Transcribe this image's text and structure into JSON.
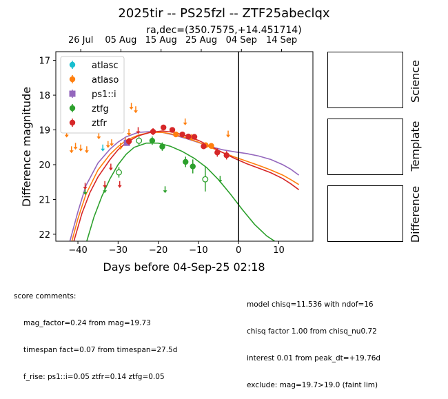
{
  "chart_data": {
    "type": "scatter",
    "title": "2025tir -- PS25fzl -- ZTF25abeclqx",
    "subtitle": "ra,dec=(350.7575,+14.451714)",
    "xlabel": "Days before 04-Sep-25 02:18",
    "ylabel": "Difference magnitude",
    "xlim": [
      -45.5,
      18.5
    ],
    "ylim": [
      22.2,
      16.75
    ],
    "x_ticks": [
      -40,
      -30,
      -20,
      -10,
      0,
      10
    ],
    "y_ticks": [
      17,
      18,
      19,
      20,
      21,
      22
    ],
    "top_axis_ticks": [
      {
        "x": -39.3,
        "label": "26 Jul"
      },
      {
        "x": -29.3,
        "label": "05 Aug"
      },
      {
        "x": -19.3,
        "label": "15 Aug"
      },
      {
        "x": -9.3,
        "label": "25 Aug"
      },
      {
        "x": 0.7,
        "label": "04 Sep"
      },
      {
        "x": 10.7,
        "label": "14 Sep"
      }
    ],
    "vertical_line_x": 0,
    "legend_position": "upper-left",
    "grid": false,
    "series": [
      {
        "name": "atlasc",
        "color": "#17becf",
        "marker": "circle",
        "points": [],
        "upper_limits": [
          [
            -33.8,
            19.5
          ]
        ]
      },
      {
        "name": "atlaso",
        "color": "#ff7f0e",
        "marker": "circle",
        "points": [
          [
            -15.6,
            19.13
          ],
          [
            -8.2,
            19.44
          ],
          [
            -6.8,
            19.46
          ]
        ],
        "upper_limits": [
          [
            -42.8,
            19.1
          ],
          [
            -41.6,
            19.55
          ],
          [
            -40.6,
            19.45
          ],
          [
            -39.3,
            19.5
          ],
          [
            -37.8,
            19.55
          ],
          [
            -34.8,
            19.15
          ],
          [
            -32.5,
            19.4
          ],
          [
            -31.6,
            19.35
          ],
          [
            -29.4,
            19.45
          ],
          [
            -28.2,
            19.3
          ],
          [
            -27.3,
            19.05
          ],
          [
            -26.7,
            18.3
          ],
          [
            -25.6,
            18.4
          ],
          [
            -13.3,
            18.75
          ],
          [
            -11.7,
            19.2
          ],
          [
            -2.6,
            19.1
          ]
        ]
      },
      {
        "name": "ps1::i",
        "color": "#9467bd",
        "marker": "square",
        "points": [
          [
            -27.8,
            19.37
          ]
        ],
        "upper_limits": []
      },
      {
        "name": "ztfg",
        "color": "#2ca02c",
        "marker": "circle",
        "points": [
          [
            -24.8,
            19.31,
            0.12,
            true
          ],
          [
            -21.5,
            19.31,
            0.12,
            false
          ],
          [
            -19.0,
            19.48,
            0.12,
            false
          ],
          [
            -13.2,
            19.92,
            0.15,
            false
          ],
          [
            -11.4,
            20.05,
            0.2,
            false
          ],
          [
            -8.3,
            20.42,
            0.35,
            true
          ],
          [
            -29.8,
            20.22,
            0.15,
            true
          ]
        ],
        "upper_limits": [
          [
            -38.2,
            20.75
          ],
          [
            -33.3,
            20.7
          ],
          [
            -18.3,
            20.7
          ],
          [
            -4.6,
            20.4
          ]
        ]
      },
      {
        "name": "ztfr",
        "color": "#d62728",
        "marker": "circle",
        "points": [
          [
            -27.3,
            19.33,
            0.1
          ],
          [
            -21.3,
            19.05,
            0.1
          ],
          [
            -18.7,
            18.93,
            0.08
          ],
          [
            -16.5,
            19.0,
            0.08
          ],
          [
            -14.0,
            19.13,
            0.08
          ],
          [
            -12.5,
            19.19,
            0.08
          ],
          [
            -11.0,
            19.2,
            0.08
          ],
          [
            -8.7,
            19.47,
            0.08
          ],
          [
            -5.3,
            19.65,
            0.12
          ],
          [
            -3.0,
            19.73,
            0.12
          ]
        ],
        "upper_limits": [
          [
            -38.2,
            20.6
          ],
          [
            -33.3,
            20.55
          ],
          [
            -31.8,
            20.05
          ],
          [
            -29.6,
            20.55
          ],
          [
            -25.0,
            19.0
          ]
        ]
      }
    ],
    "model_curves": [
      {
        "name": "ps1::i",
        "color": "#9467bd",
        "points": [
          [
            -42.0,
            22.2
          ],
          [
            -40.0,
            21.35
          ],
          [
            -38.0,
            20.6
          ],
          [
            -35.0,
            19.95
          ],
          [
            -32.0,
            19.55
          ],
          [
            -30.0,
            19.35
          ],
          [
            -28.0,
            19.2
          ],
          [
            -25.0,
            19.07
          ],
          [
            -22.0,
            19.05
          ],
          [
            -19.0,
            19.07
          ],
          [
            -16.0,
            19.15
          ],
          [
            -13.0,
            19.25
          ],
          [
            -10.0,
            19.36
          ],
          [
            -7.0,
            19.48
          ],
          [
            -4.0,
            19.57
          ],
          [
            -1.0,
            19.63
          ],
          [
            2.0,
            19.68
          ],
          [
            5.0,
            19.75
          ],
          [
            8.0,
            19.85
          ],
          [
            11.0,
            20.0
          ],
          [
            13.0,
            20.13
          ],
          [
            15.0,
            20.3
          ]
        ]
      },
      {
        "name": "atlaso",
        "color": "#ff7f0e",
        "points": [
          [
            -41.5,
            22.2
          ],
          [
            -40.0,
            21.55
          ],
          [
            -38.0,
            20.85
          ],
          [
            -35.0,
            20.15
          ],
          [
            -32.0,
            19.7
          ],
          [
            -30.0,
            19.48
          ],
          [
            -28.0,
            19.3
          ],
          [
            -25.0,
            19.15
          ],
          [
            -22.0,
            19.07
          ],
          [
            -19.0,
            19.07
          ],
          [
            -16.0,
            19.13
          ],
          [
            -13.0,
            19.23
          ],
          [
            -10.0,
            19.35
          ],
          [
            -7.0,
            19.5
          ],
          [
            -4.0,
            19.65
          ],
          [
            -1.0,
            19.78
          ],
          [
            2.0,
            19.9
          ],
          [
            5.0,
            20.02
          ],
          [
            8.0,
            20.15
          ],
          [
            11.0,
            20.3
          ],
          [
            13.0,
            20.43
          ],
          [
            15.0,
            20.57
          ]
        ]
      },
      {
        "name": "ztfr",
        "color": "#d62728",
        "points": [
          [
            -41.0,
            22.2
          ],
          [
            -39.0,
            21.4
          ],
          [
            -37.0,
            20.8
          ],
          [
            -35.0,
            20.35
          ],
          [
            -32.0,
            19.85
          ],
          [
            -30.0,
            19.57
          ],
          [
            -28.0,
            19.37
          ],
          [
            -25.0,
            19.17
          ],
          [
            -22.0,
            19.07
          ],
          [
            -19.0,
            19.03
          ],
          [
            -16.0,
            19.07
          ],
          [
            -13.0,
            19.17
          ],
          [
            -10.0,
            19.3
          ],
          [
            -7.0,
            19.47
          ],
          [
            -4.0,
            19.65
          ],
          [
            -1.0,
            19.82
          ],
          [
            2.0,
            19.97
          ],
          [
            5.0,
            20.1
          ],
          [
            8.0,
            20.23
          ],
          [
            11.0,
            20.4
          ],
          [
            13.0,
            20.55
          ],
          [
            15.0,
            20.72
          ]
        ]
      },
      {
        "name": "ztfg",
        "color": "#2ca02c",
        "points": [
          [
            -37.8,
            22.2
          ],
          [
            -36.0,
            21.5
          ],
          [
            -34.0,
            20.9
          ],
          [
            -32.0,
            20.4
          ],
          [
            -30.0,
            20.0
          ],
          [
            -28.0,
            19.7
          ],
          [
            -26.0,
            19.5
          ],
          [
            -23.0,
            19.38
          ],
          [
            -20.0,
            19.38
          ],
          [
            -17.0,
            19.47
          ],
          [
            -14.0,
            19.62
          ],
          [
            -11.0,
            19.82
          ],
          [
            -8.0,
            20.08
          ],
          [
            -5.0,
            20.43
          ],
          [
            -2.0,
            20.85
          ],
          [
            1.0,
            21.3
          ],
          [
            4.0,
            21.72
          ],
          [
            7.0,
            22.05
          ],
          [
            9.0,
            22.2
          ]
        ]
      }
    ]
  },
  "side_panels": {
    "science_label": "Science",
    "template_label": "Template",
    "difference_label": "Difference"
  },
  "comments_left": {
    "header": "score comments:",
    "lines": [
      "mag_factor=0.24 from mag=19.73",
      "timespan fact=0.07 from timespan=27.5d",
      "f_rise: ps1::i=0.05 ztfr=0.14 ztfg=0.05"
    ]
  },
  "comments_right": {
    "lines": [
      "model chisq=11.536 with ndof=16",
      "chisq factor 1.00 from chisq_nu0.72",
      "interest 0.01 from peak_dt=+19.76d",
      "exclude: mag=19.7>19.0 (faint lim)"
    ]
  }
}
